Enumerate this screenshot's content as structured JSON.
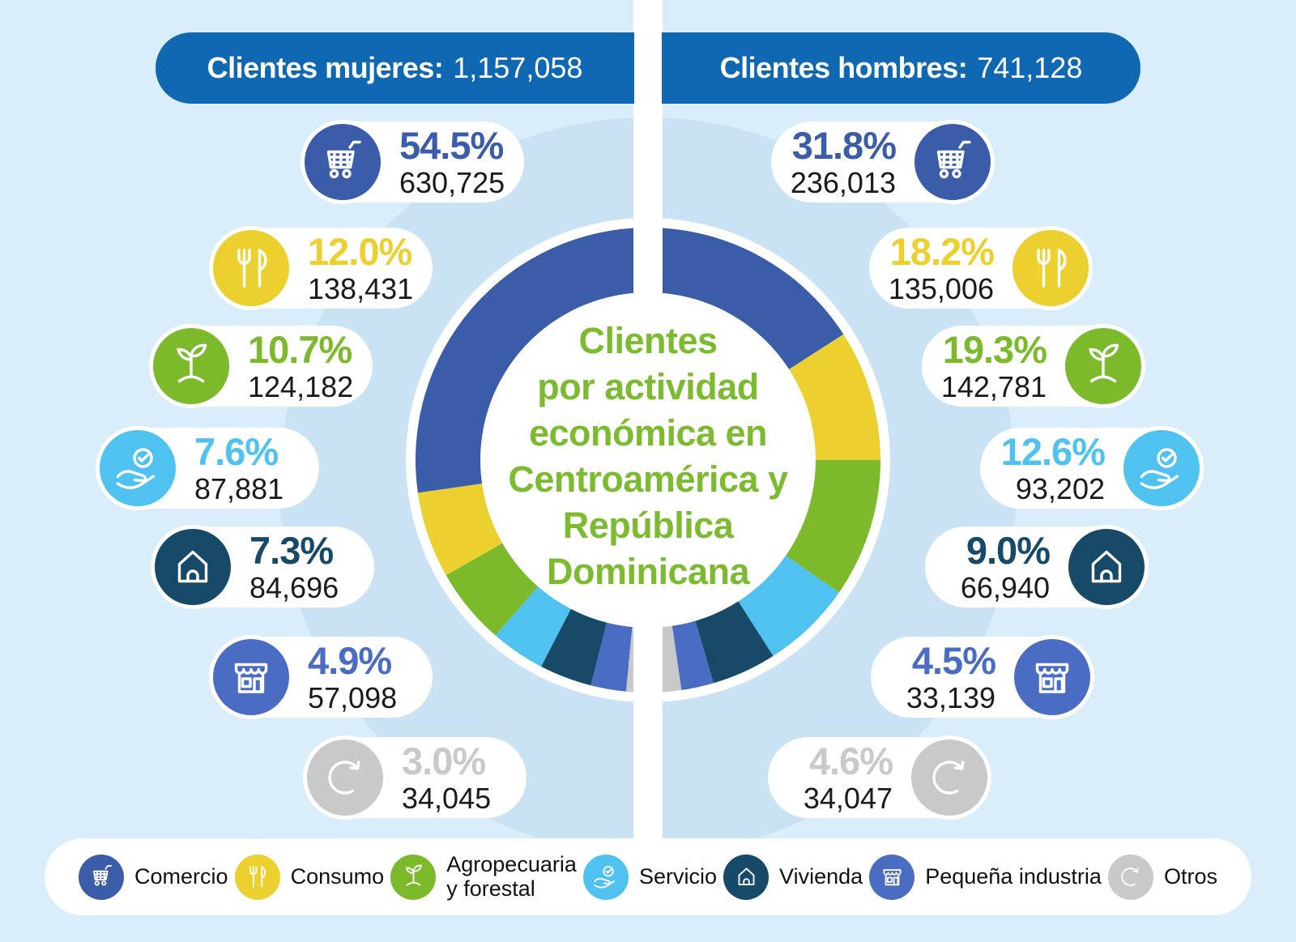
{
  "page": {
    "background": "#D9EDFA",
    "panel_circle": "#C9E2F4",
    "divider_color": "#FFFFFF"
  },
  "header": {
    "bg": "#1168B2",
    "women_label": "Clientes mujeres:",
    "women_value": "1,157,058",
    "men_label": "Clientes hombres:",
    "men_value": "741,128"
  },
  "center": {
    "color": "#7CBB2F",
    "title_lines": [
      "Clientes",
      "por actividad",
      "económica en",
      "Centroamérica y",
      "República",
      "Dominicana"
    ]
  },
  "categories": [
    {
      "id": "comercio",
      "label": "Comercio",
      "color": "#3B5CA9",
      "icon": "shopping-cart-icon"
    },
    {
      "id": "consumo",
      "label": "Consumo",
      "color": "#EBD02F",
      "icon": "cutlery-icon"
    },
    {
      "id": "agropecuaria",
      "label": "Agropecuaria\ny forestal",
      "color": "#7CBA2B",
      "icon": "seedling-icon"
    },
    {
      "id": "servicio",
      "label": "Servicio",
      "color": "#4FC2EF",
      "icon": "hand-check-icon"
    },
    {
      "id": "vivienda",
      "label": "Vivienda",
      "color": "#174A68",
      "icon": "house-icon"
    },
    {
      "id": "pequena_industria",
      "label": "Pequeña industria",
      "color": "#4A6CC2",
      "icon": "storefront-icon"
    },
    {
      "id": "otros",
      "label": "Otros",
      "color": "#C9C9C9",
      "icon": "refresh-arrow-icon"
    }
  ],
  "stats": {
    "women": [
      {
        "percent": "54.5%",
        "count": "630,725"
      },
      {
        "percent": "12.0%",
        "count": "138,431"
      },
      {
        "percent": "10.7%",
        "count": "124,182"
      },
      {
        "percent": "7.6%",
        "count": "87,881"
      },
      {
        "percent": "7.3%",
        "count": "84,696"
      },
      {
        "percent": "4.9%",
        "count": "57,098"
      },
      {
        "percent": "3.0%",
        "count": "34,045"
      }
    ],
    "men": [
      {
        "percent": "31.8%",
        "count": "236,013"
      },
      {
        "percent": "18.2%",
        "count": "135,006"
      },
      {
        "percent": "19.3%",
        "count": "142,781"
      },
      {
        "percent": "12.6%",
        "count": "93,202"
      },
      {
        "percent": "9.0%",
        "count": "66,940"
      },
      {
        "percent": "4.5%",
        "count": "33,139"
      },
      {
        "percent": "4.6%",
        "count": "34,047"
      }
    ]
  },
  "chart_data": {
    "type": "donut",
    "title": "Clientes por actividad económica en Centroamérica y República Dominicana",
    "categories": [
      "Comercio",
      "Consumo",
      "Agropecuaria y forestal",
      "Servicio",
      "Vivienda",
      "Pequeña industria",
      "Otros"
    ],
    "colors": [
      "#3B5CA9",
      "#EBD02F",
      "#7CBA2B",
      "#4FC2EF",
      "#174A68",
      "#4A6CC2",
      "#C9C9C9"
    ],
    "series": [
      {
        "name": "Clientes mujeres",
        "total": 1157058,
        "side": "left",
        "direction": "counterclockwise-from-top",
        "percents": [
          54.5,
          12.0,
          10.7,
          7.6,
          7.3,
          4.9,
          3.0
        ],
        "counts": [
          630725,
          138431,
          124182,
          87881,
          84696,
          57098,
          34045
        ]
      },
      {
        "name": "Clientes hombres",
        "total": 741128,
        "side": "right",
        "direction": "clockwise-from-top",
        "percents": [
          31.8,
          18.2,
          19.3,
          12.6,
          9.0,
          4.5,
          4.6
        ],
        "counts": [
          236013,
          135006,
          142781,
          93202,
          66940,
          33139,
          34047
        ]
      }
    ],
    "layout": "two half-donuts split by white vertical divider; women left, men right",
    "legend_position": "bottom"
  }
}
